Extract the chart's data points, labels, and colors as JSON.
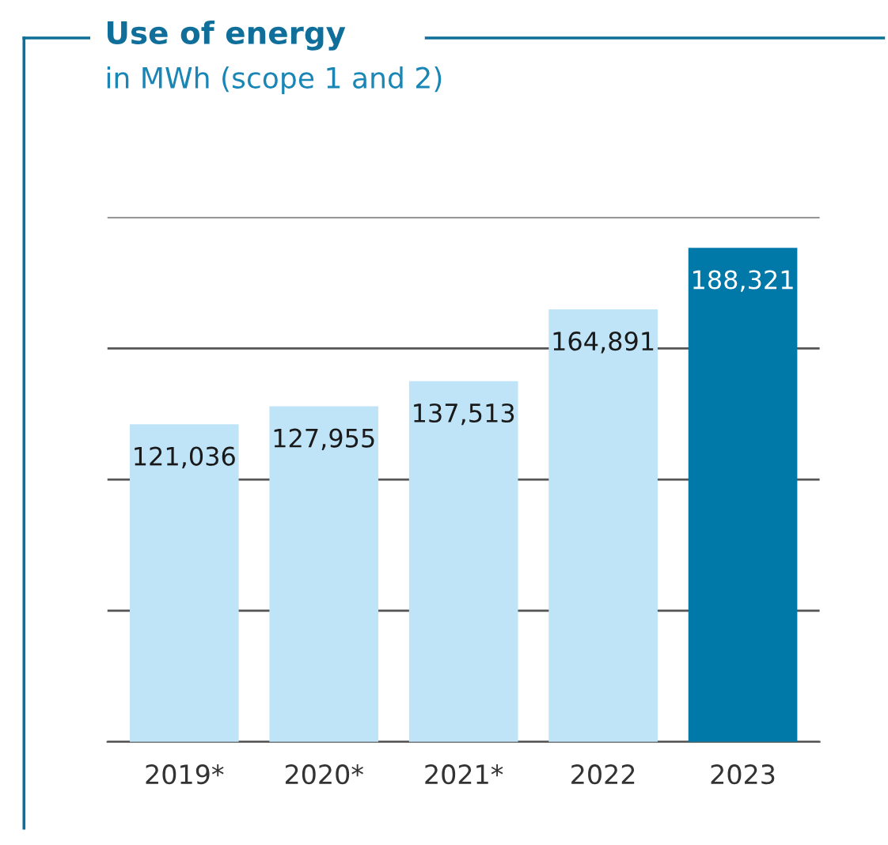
{
  "chart_data": {
    "type": "bar",
    "title": "Use of energy",
    "subtitle": "in MWh (scope 1 and 2)",
    "categories": [
      "2019*",
      "2020*",
      "2021*",
      "2022",
      "2023"
    ],
    "values": [
      121036,
      127955,
      137513,
      164891,
      188321
    ],
    "colors": [
      "#bfe4f8",
      "#bfe4f8",
      "#bfe4f8",
      "#bfe4f8",
      "#0079a8"
    ],
    "value_labels": [
      "121,036",
      "127,955",
      "137,513",
      "164,891",
      "188,321"
    ],
    "ylim": [
      0,
      200000
    ],
    "yticks": [
      {
        "value": 0,
        "label": null
      },
      {
        "value": 50000,
        "label": null
      },
      {
        "value": 100000,
        "label": null
      },
      {
        "value": 150000,
        "label": null
      },
      {
        "value": 200000,
        "label": null
      }
    ],
    "grid": "y",
    "tick_labels": "x"
  }
}
